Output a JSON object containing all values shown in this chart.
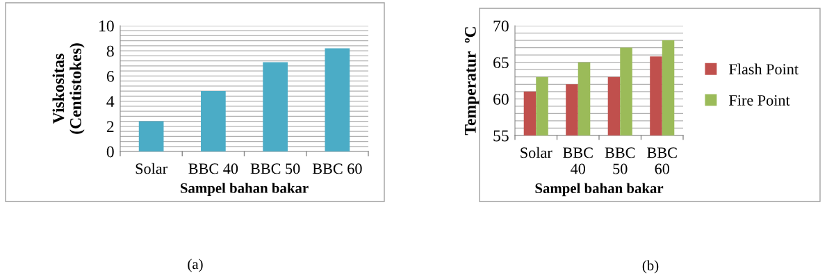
{
  "chart_data": [
    {
      "type": "bar",
      "categories": [
        "Solar",
        "BBC 40",
        "BBC 50",
        "BBC 60"
      ],
      "xlabel": "Sampel bahan bakar",
      "ylabel": "Viskositas\n(Centistokes)",
      "series": [
        {
          "color": "#4bacc6",
          "values": [
            2.4,
            4.8,
            7.1,
            8.2
          ]
        }
      ],
      "ylim": [
        0,
        10
      ],
      "yticks": [
        0,
        {
          "value": 0.4,
          "label": null
        },
        {
          "value": 0.8,
          "label": null
        },
        {
          "value": 1.2,
          "label": null
        },
        {
          "value": 1.6,
          "label": null
        },
        2,
        {
          "value": 2.4,
          "label": null
        },
        {
          "value": 2.8,
          "label": null
        },
        {
          "value": 3.2,
          "label": null
        },
        {
          "value": 3.6,
          "label": null
        },
        4,
        {
          "value": 4.4,
          "label": null
        },
        {
          "value": 4.8,
          "label": null
        },
        {
          "value": 5.2,
          "label": null
        },
        {
          "value": 5.6,
          "label": null
        },
        6,
        {
          "value": 6.4,
          "label": null
        },
        {
          "value": 6.8,
          "label": null
        },
        {
          "value": 7.2,
          "label": null
        },
        {
          "value": 7.6,
          "label": null
        },
        8,
        {
          "value": 8.4,
          "label": null
        },
        {
          "value": 8.8,
          "label": null
        },
        {
          "value": 9.2,
          "label": null
        },
        {
          "value": 9.6,
          "label": null
        },
        10
      ],
      "grid": "y",
      "legend": false,
      "annotations": [
        "(a)"
      ]
    },
    {
      "type": "bar",
      "categories": [
        "Solar",
        "BBC\n40",
        "BBC\n50",
        "BBC\n60"
      ],
      "xlabel": "Sampel bahan bakar",
      "ylabel": "Temperatur  ºC",
      "series": [
        {
          "name": "Flash Point",
          "color": "#c0504d",
          "values": [
            61,
            62,
            63,
            65.8
          ]
        },
        {
          "name": "Fire Point",
          "color": "#9bbb59",
          "values": [
            63,
            65,
            67,
            68
          ]
        }
      ],
      "ylim": [
        55,
        70
      ],
      "yticks": [
        55,
        {
          "value": 56,
          "label": null
        },
        {
          "value": 57,
          "label": null
        },
        {
          "value": 58,
          "label": null
        },
        {
          "value": 59,
          "label": null
        },
        60,
        {
          "value": 61,
          "label": null
        },
        {
          "value": 62,
          "label": null
        },
        {
          "value": 63,
          "label": null
        },
        {
          "value": 64,
          "label": null
        },
        65,
        {
          "value": 66,
          "label": null
        },
        {
          "value": 67,
          "label": null
        },
        {
          "value": 68,
          "label": null
        },
        {
          "value": 69,
          "label": null
        },
        70
      ],
      "grid": "y",
      "legend": "right",
      "annotations": [
        "(b)"
      ]
    }
  ]
}
